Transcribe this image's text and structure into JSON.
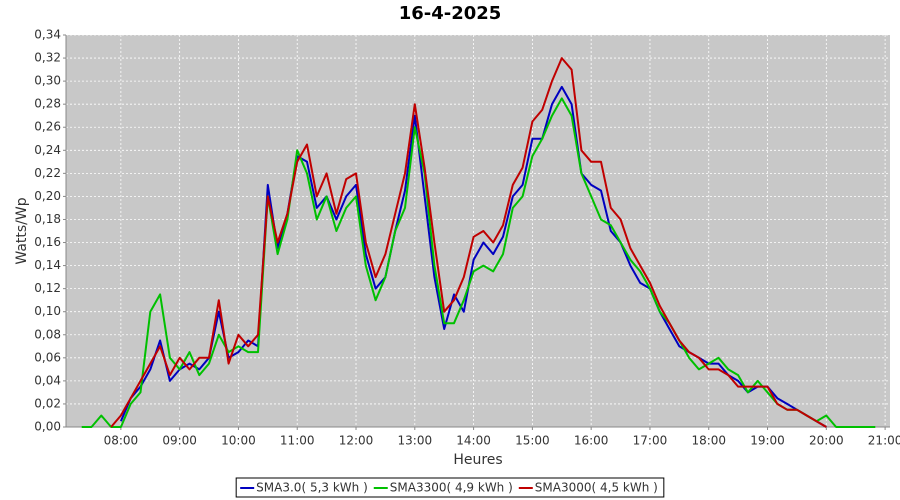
{
  "chart_data": {
    "type": "line",
    "title": "16-4-2025",
    "x_label": "Heures",
    "y_label": "Watts/Wp",
    "x": [
      440,
      450,
      460,
      470,
      480,
      490,
      500,
      510,
      520,
      530,
      540,
      550,
      560,
      570,
      580,
      590,
      600,
      610,
      620,
      630,
      640,
      650,
      660,
      670,
      680,
      690,
      700,
      710,
      720,
      730,
      740,
      750,
      760,
      770,
      780,
      790,
      800,
      810,
      820,
      830,
      840,
      850,
      860,
      870,
      880,
      890,
      900,
      910,
      920,
      930,
      940,
      950,
      960,
      970,
      980,
      990,
      1000,
      1010,
      1020,
      1030,
      1040,
      1050,
      1060,
      1070,
      1080,
      1090,
      1100,
      1110,
      1120,
      1130,
      1140,
      1150,
      1160,
      1170,
      1180,
      1190,
      1200,
      1210,
      1220,
      1230,
      1240,
      1250
    ],
    "xlim": [
      424,
      1265
    ],
    "xticks": [
      {
        "value": 480,
        "label": "08:00"
      },
      {
        "value": 540,
        "label": "09:00"
      },
      {
        "value": 600,
        "label": "10:00"
      },
      {
        "value": 660,
        "label": "11:00"
      },
      {
        "value": 720,
        "label": "12:00"
      },
      {
        "value": 780,
        "label": "13:00"
      },
      {
        "value": 840,
        "label": "14:00"
      },
      {
        "value": 900,
        "label": "15:00"
      },
      {
        "value": 960,
        "label": "16:00"
      },
      {
        "value": 1020,
        "label": "17:00"
      },
      {
        "value": 1080,
        "label": "18:00"
      },
      {
        "value": 1140,
        "label": "19:00"
      },
      {
        "value": 1200,
        "label": "20:00"
      },
      {
        "value": 1260,
        "label": "21:00"
      }
    ],
    "ylim": [
      0,
      0.34
    ],
    "yticks": [
      {
        "value": 0,
        "label": "0,00"
      },
      {
        "value": 0.02,
        "label": "0,02"
      },
      {
        "value": 0.04,
        "label": "0,04"
      },
      {
        "value": 0.06,
        "label": "0,06"
      },
      {
        "value": 0.08,
        "label": "0,08"
      },
      {
        "value": 0.1,
        "label": "0,10"
      },
      {
        "value": 0.12,
        "label": "0,12"
      },
      {
        "value": 0.14,
        "label": "0,14"
      },
      {
        "value": 0.16,
        "label": "0,16"
      },
      {
        "value": 0.18,
        "label": "0,18"
      },
      {
        "value": 0.2,
        "label": "0,20"
      },
      {
        "value": 0.22,
        "label": "0,22"
      },
      {
        "value": 0.24,
        "label": "0,24"
      },
      {
        "value": 0.26,
        "label": "0,26"
      },
      {
        "value": 0.28,
        "label": "0,28"
      },
      {
        "value": 0.3,
        "label": "0,30"
      },
      {
        "value": 0.32,
        "label": "0,32"
      },
      {
        "value": 0.34,
        "label": "0,34"
      }
    ],
    "grid": true,
    "legend": "bottom",
    "series": [
      {
        "name": "SMA3.0( 5,3 kWh )",
        "color": "#0000c0",
        "values": [
          null,
          null,
          null,
          null,
          0.005,
          0.025,
          0.035,
          0.05,
          0.075,
          0.04,
          0.05,
          0.055,
          0.05,
          0.06,
          0.1,
          0.06,
          0.065,
          0.075,
          0.07,
          0.21,
          0.155,
          0.185,
          0.235,
          0.23,
          0.19,
          0.2,
          0.18,
          0.2,
          0.21,
          0.15,
          0.12,
          0.13,
          0.17,
          0.205,
          0.27,
          0.2,
          0.13,
          0.085,
          0.115,
          0.1,
          0.145,
          0.16,
          0.15,
          0.165,
          0.2,
          0.21,
          0.25,
          0.25,
          0.28,
          0.295,
          0.28,
          0.22,
          0.21,
          0.205,
          0.17,
          0.16,
          0.14,
          0.125,
          0.12,
          0.1,
          0.085,
          0.07,
          0.065,
          0.06,
          0.055,
          0.055,
          0.045,
          0.04,
          0.03,
          0.035,
          0.035,
          0.025,
          0.02,
          0.015,
          0.01,
          0.005,
          0,
          null,
          null,
          null,
          null,
          null
        ]
      },
      {
        "name": "SMA3300( 4,9 kWh )",
        "color": "#00c000",
        "values": [
          0,
          0,
          0.01,
          0,
          0,
          0.02,
          0.03,
          0.1,
          0.115,
          0.06,
          0.05,
          0.065,
          0.045,
          0.055,
          0.08,
          0.065,
          0.07,
          0.065,
          0.065,
          0.2,
          0.15,
          0.18,
          0.24,
          0.22,
          0.18,
          0.2,
          0.17,
          0.19,
          0.2,
          0.14,
          0.11,
          0.13,
          0.17,
          0.19,
          0.26,
          0.22,
          0.14,
          0.09,
          0.09,
          0.11,
          0.135,
          0.14,
          0.135,
          0.15,
          0.19,
          0.2,
          0.235,
          0.25,
          0.27,
          0.285,
          0.27,
          0.22,
          0.2,
          0.18,
          0.175,
          0.16,
          0.145,
          0.135,
          0.12,
          0.1,
          0.09,
          0.075,
          0.06,
          0.05,
          0.055,
          0.06,
          0.05,
          0.045,
          0.03,
          0.04,
          0.03,
          0.02,
          0.015,
          0.015,
          0.01,
          0.005,
          0.01,
          0,
          0,
          0,
          0,
          0
        ]
      },
      {
        "name": "SMA3000( 4,5 kWh )",
        "color": "#c00000",
        "values": [
          null,
          null,
          null,
          0,
          0.01,
          0.025,
          0.04,
          0.055,
          0.07,
          0.045,
          0.06,
          0.05,
          0.06,
          0.06,
          0.11,
          0.055,
          0.08,
          0.07,
          0.08,
          0.2,
          0.16,
          0.185,
          0.23,
          0.245,
          0.2,
          0.22,
          0.185,
          0.215,
          0.22,
          0.16,
          0.13,
          0.15,
          0.185,
          0.22,
          0.28,
          0.225,
          0.16,
          0.1,
          0.11,
          0.13,
          0.165,
          0.17,
          0.16,
          0.175,
          0.21,
          0.225,
          0.265,
          0.275,
          0.3,
          0.32,
          0.31,
          0.24,
          0.23,
          0.23,
          0.19,
          0.18,
          0.155,
          0.14,
          0.125,
          0.105,
          0.09,
          0.075,
          0.065,
          0.06,
          0.05,
          0.05,
          0.045,
          0.035,
          0.035,
          0.035,
          0.035,
          0.02,
          0.015,
          0.015,
          0.01,
          0.005,
          0,
          null,
          null,
          null,
          null,
          null
        ]
      }
    ]
  }
}
